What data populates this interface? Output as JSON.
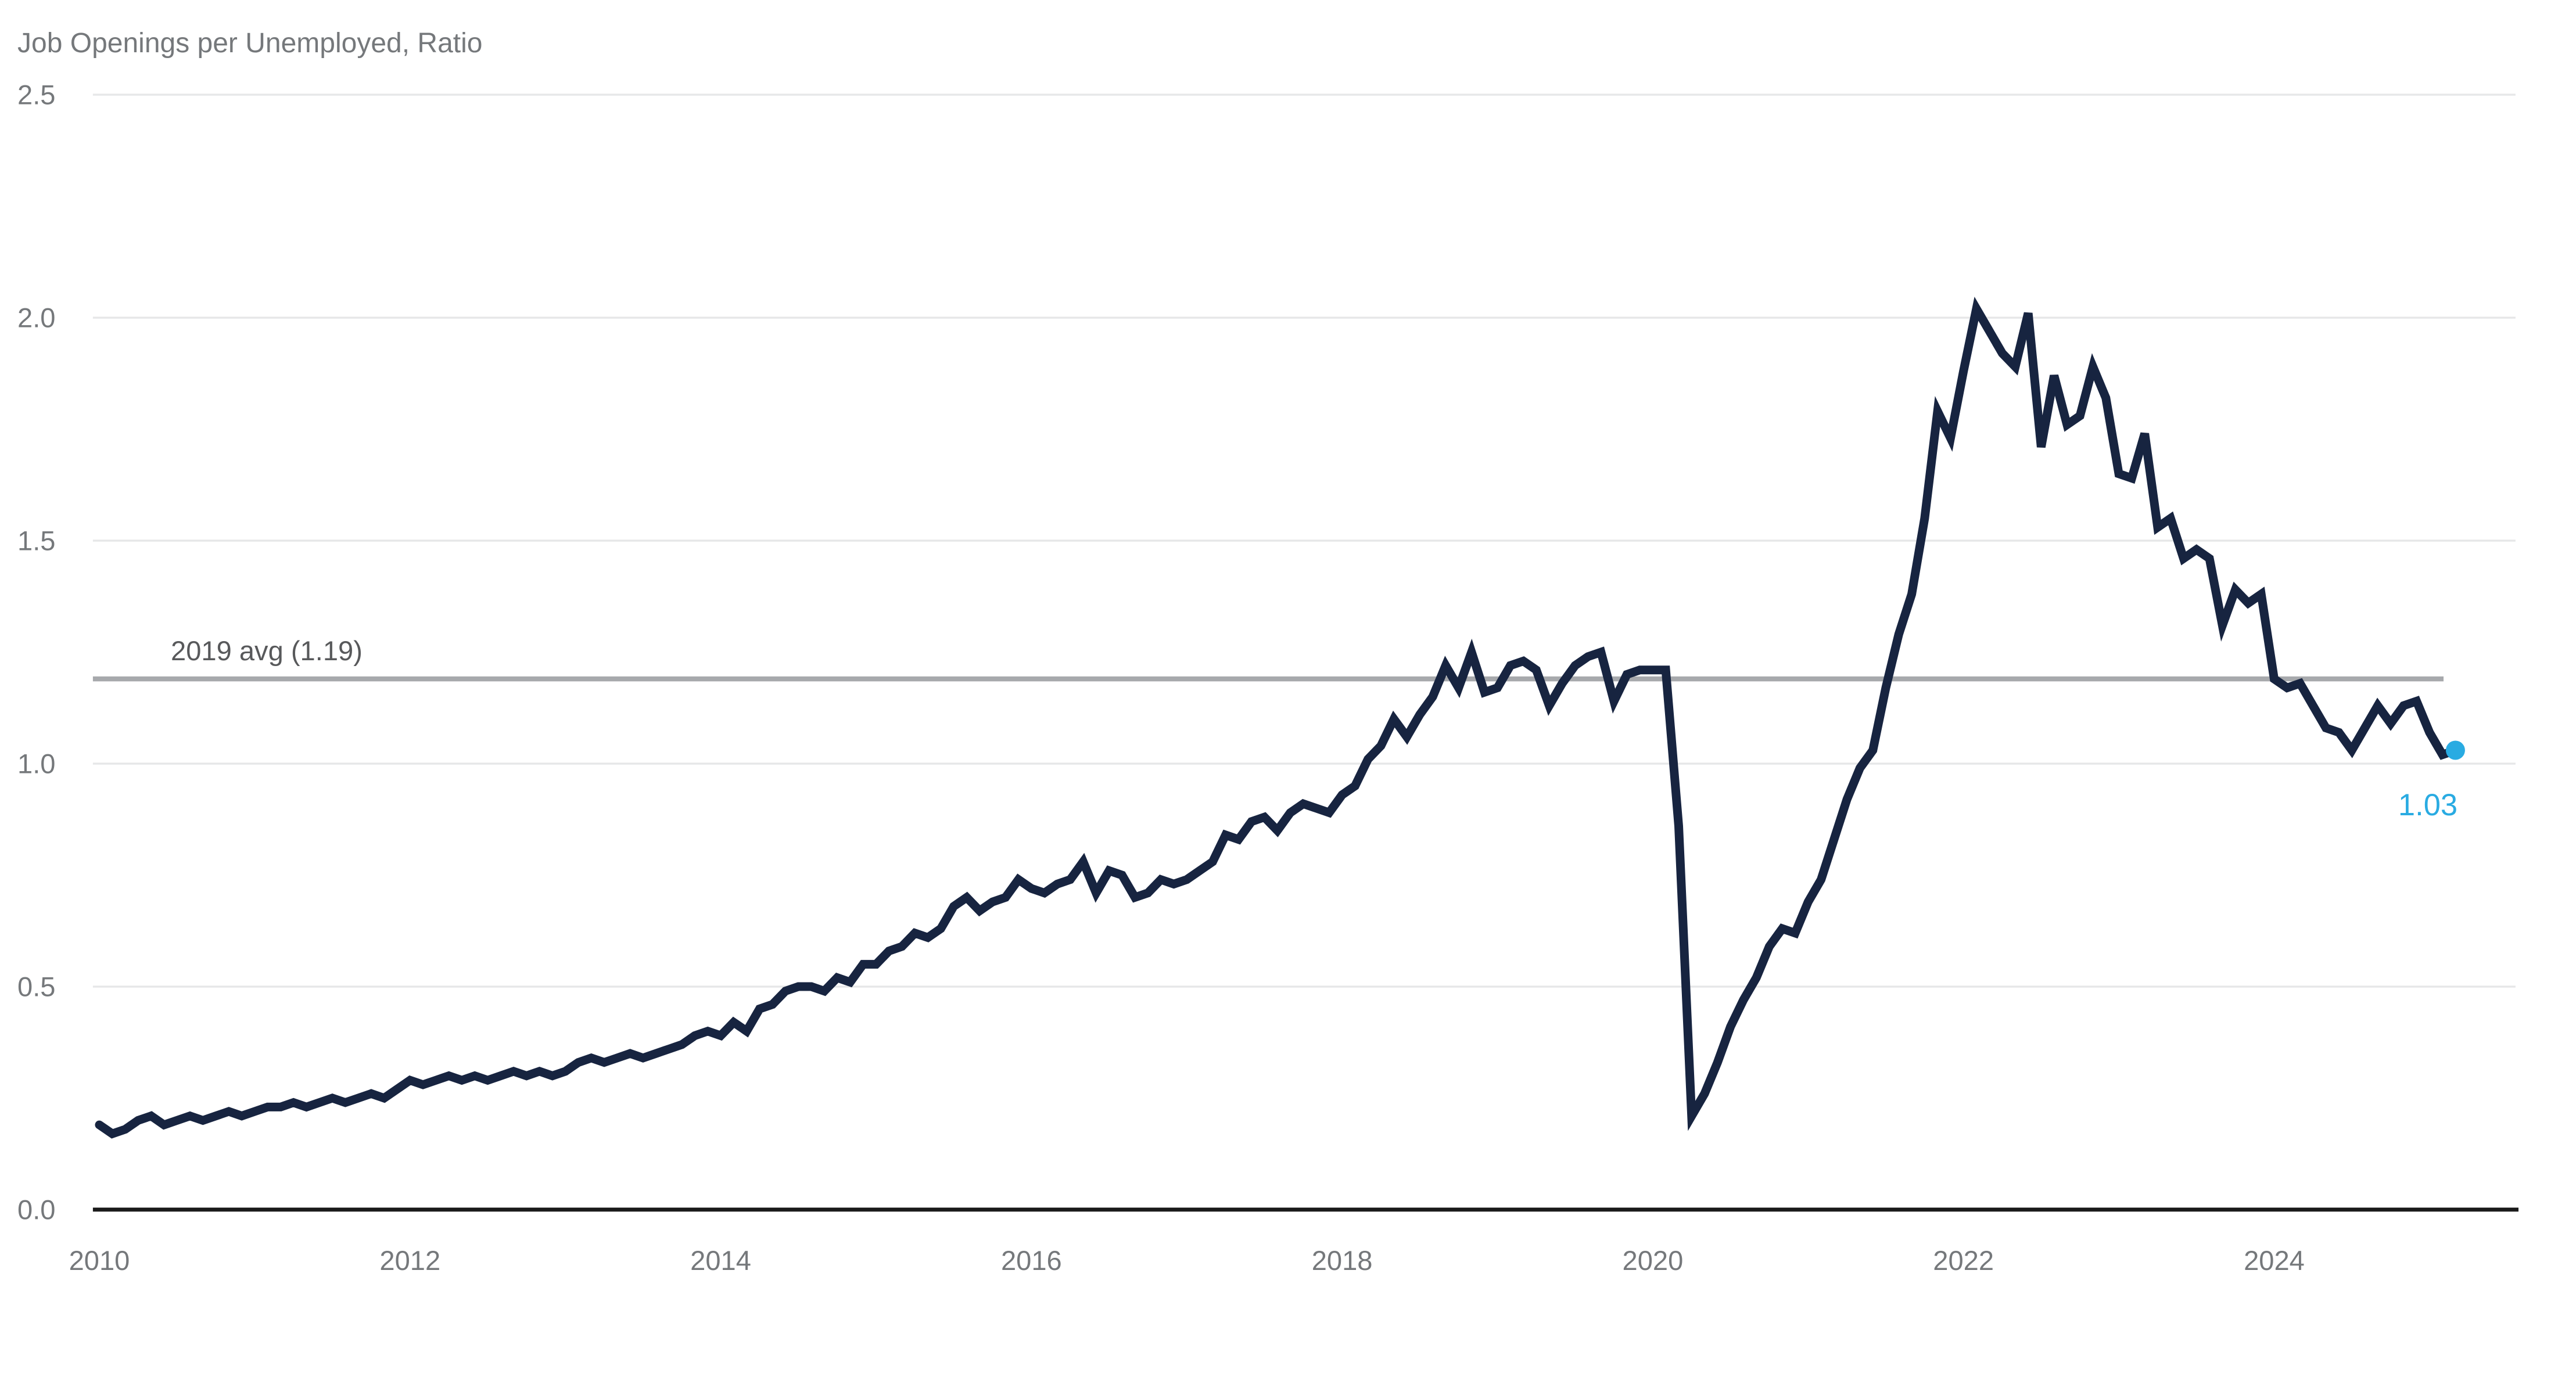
{
  "chart_data": {
    "type": "line",
    "title": "Job Openings per Unemployed, Ratio",
    "xlabel": "",
    "ylabel": "",
    "ylim": [
      0.0,
      2.5
    ],
    "xlim": [
      2009.96,
      2025.6
    ],
    "grid": "horizontal",
    "legend_position": "none",
    "y_ticks": [
      "2.5",
      "2.0",
      "1.5",
      "1.0",
      "0.5",
      "0.0"
    ],
    "y_tick_values": [
      2.5,
      2.0,
      1.5,
      1.0,
      0.5,
      0.0
    ],
    "x_ticks": [
      "2010",
      "2012",
      "2014",
      "2016",
      "2018",
      "2020",
      "2022",
      "2024"
    ],
    "x_tick_values": [
      2010,
      2012,
      2014,
      2016,
      2018,
      2020,
      2022,
      2024
    ],
    "annotation": {
      "label": "2019 avg (1.19)",
      "value": 1.19
    },
    "endpoint": {
      "label": "1.03",
      "value": 1.03
    },
    "series": [
      {
        "name": "Job openings per unemployed person",
        "frequency": "monthly",
        "start_year": 2010,
        "start_month": 1,
        "values": [
          0.19,
          0.17,
          0.18,
          0.2,
          0.21,
          0.19,
          0.2,
          0.21,
          0.2,
          0.21,
          0.22,
          0.21,
          0.22,
          0.23,
          0.23,
          0.24,
          0.23,
          0.24,
          0.25,
          0.24,
          0.25,
          0.26,
          0.25,
          0.27,
          0.29,
          0.28,
          0.29,
          0.3,
          0.29,
          0.3,
          0.29,
          0.3,
          0.31,
          0.3,
          0.31,
          0.3,
          0.31,
          0.33,
          0.34,
          0.33,
          0.34,
          0.35,
          0.34,
          0.35,
          0.36,
          0.37,
          0.39,
          0.4,
          0.39,
          0.42,
          0.4,
          0.45,
          0.46,
          0.49,
          0.5,
          0.5,
          0.49,
          0.52,
          0.51,
          0.55,
          0.55,
          0.58,
          0.59,
          0.62,
          0.61,
          0.63,
          0.68,
          0.7,
          0.67,
          0.69,
          0.7,
          0.74,
          0.72,
          0.71,
          0.73,
          0.74,
          0.78,
          0.71,
          0.76,
          0.75,
          0.7,
          0.71,
          0.74,
          0.73,
          0.74,
          0.76,
          0.78,
          0.84,
          0.83,
          0.87,
          0.88,
          0.85,
          0.89,
          0.91,
          0.9,
          0.89,
          0.93,
          0.95,
          1.01,
          1.04,
          1.1,
          1.06,
          1.11,
          1.15,
          1.22,
          1.17,
          1.25,
          1.16,
          1.17,
          1.22,
          1.23,
          1.21,
          1.13,
          1.18,
          1.22,
          1.24,
          1.25,
          1.14,
          1.2,
          1.21,
          1.21,
          1.21,
          0.86,
          0.21,
          0.26,
          0.33,
          0.41,
          0.47,
          0.52,
          0.59,
          0.63,
          0.62,
          0.69,
          0.74,
          0.83,
          0.92,
          0.99,
          1.03,
          1.17,
          1.29,
          1.38,
          1.55,
          1.79,
          1.73,
          1.88,
          2.02,
          1.97,
          1.92,
          1.89,
          2.01,
          1.71,
          1.87,
          1.76,
          1.78,
          1.89,
          1.82,
          1.65,
          1.64,
          1.74,
          1.53,
          1.55,
          1.46,
          1.48,
          1.46,
          1.31,
          1.39,
          1.36,
          1.38,
          1.19,
          1.17,
          1.18,
          1.13,
          1.08,
          1.07,
          1.03,
          1.08,
          1.13,
          1.09,
          1.13,
          1.14,
          1.07,
          1.02,
          1.03
        ]
      }
    ],
    "colors": {
      "line": "#172440",
      "accent": "#29ABE2",
      "average_line": "#A7A9AC",
      "gridline": "#E6E7E8",
      "axis": "#1A1A1A",
      "text": "#75787B",
      "annotation_text": "#58595B",
      "background": "#FFFFFF"
    }
  }
}
